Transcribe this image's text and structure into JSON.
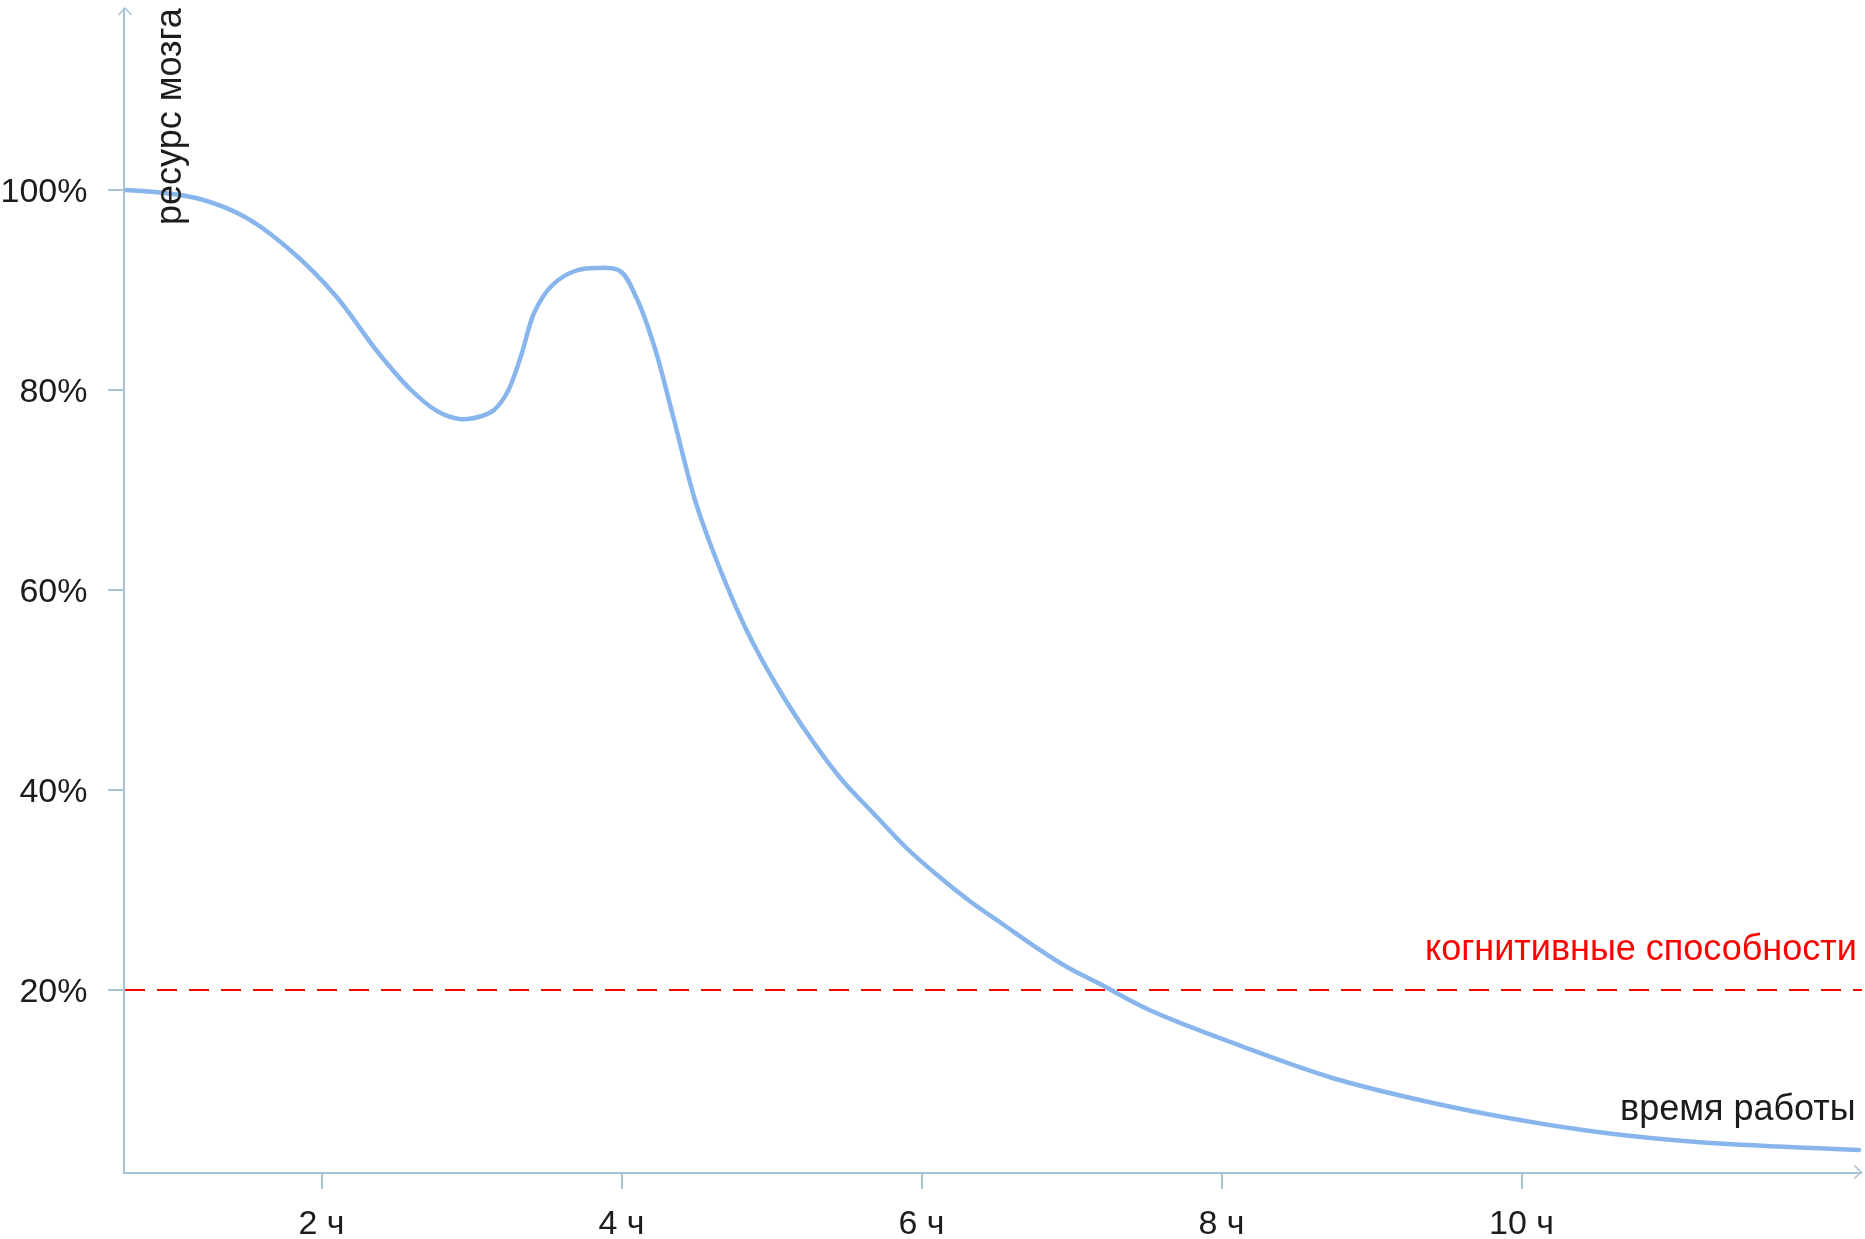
{
  "chart_data": {
    "type": "line",
    "xlabel": "время работы",
    "ylabel": "ресурс мозга",
    "x": [
      0.69,
      0.89,
      1.19,
      1.49,
      1.79,
      2.09,
      2.38,
      2.59,
      2.77,
      2.92,
      3.07,
      3.15,
      3.24,
      3.33,
      3.42,
      3.54,
      3.69,
      3.83,
      3.99,
      4.1,
      4.22,
      4.34,
      4.49,
      4.62,
      4.83,
      5.04,
      5.26,
      5.47,
      5.69,
      5.9,
      6.12,
      6.33,
      6.55,
      6.76,
      6.97,
      7.19,
      7.52,
      8.13,
      8.74,
      9.35,
      9.95,
      10.56,
      11.17,
      11.78,
      12.25
    ],
    "series": [
      {
        "color": "#88b6ec",
        "values": [
          100.0,
          99.8,
          99.1,
          97.3,
          94.0,
          89.5,
          83.7,
          80.1,
          77.9,
          77.1,
          77.4,
          78.0,
          79.8,
          83.4,
          87.8,
          90.5,
          91.9,
          92.2,
          91.9,
          89.2,
          84.3,
          77.6,
          69.0,
          63.5,
          56.1,
          50.3,
          45.2,
          41.0,
          37.5,
          34.2,
          31.3,
          28.8,
          26.5,
          24.3,
          22.3,
          20.6,
          18.0,
          14.4,
          11.2,
          8.9,
          7.1,
          5.7,
          4.8,
          4.3,
          4.0
        ]
      }
    ],
    "xlim": [
      0.69,
      12.27
    ],
    "xticks": [
      {
        "value": 2,
        "label": "2 ч"
      },
      {
        "value": 4,
        "label": "4 ч"
      },
      {
        "value": 6,
        "label": "6 ч"
      },
      {
        "value": 8,
        "label": "8 ч"
      },
      {
        "value": 10,
        "label": "10 ч"
      }
    ],
    "ylim": [
      1.8,
      118.2
    ],
    "yticks": [
      {
        "value": 20,
        "label": "20%"
      },
      {
        "value": 40,
        "label": "40%"
      },
      {
        "value": 60,
        "label": "60%"
      },
      {
        "value": 80,
        "label": "80%"
      },
      {
        "value": 100,
        "label": "100%"
      }
    ],
    "ref_lines": [
      {
        "axis": "y",
        "value": 20,
        "label": "когнитивные способности",
        "color": "#ff0000",
        "line_style": "dashed"
      }
    ]
  }
}
